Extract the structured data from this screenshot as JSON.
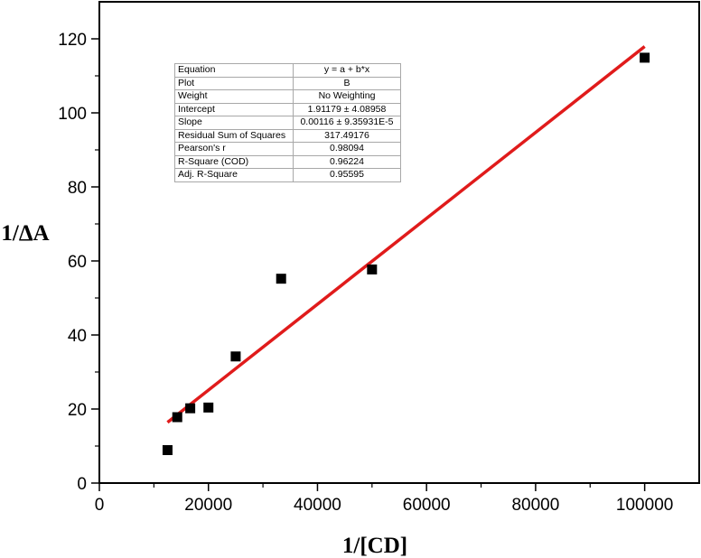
{
  "chart_data": {
    "type": "scatter",
    "xlabel": "1/[CD]",
    "ylabel": "1/ΔA",
    "xlim": [
      0,
      110000
    ],
    "ylim": [
      0,
      130
    ],
    "xticks": [
      0,
      20000,
      40000,
      60000,
      80000,
      100000
    ],
    "yticks": [
      0,
      20,
      40,
      60,
      80,
      100,
      120
    ],
    "points": [
      {
        "x": 12500,
        "y": 8.9
      },
      {
        "x": 14286,
        "y": 17.8
      },
      {
        "x": 16667,
        "y": 20.2
      },
      {
        "x": 20000,
        "y": 20.4
      },
      {
        "x": 25000,
        "y": 34.2
      },
      {
        "x": 33333,
        "y": 55.2
      },
      {
        "x": 50000,
        "y": 57.7
      },
      {
        "x": 100000,
        "y": 114.9
      }
    ],
    "fit_line": {
      "intercept": 1.91179,
      "slope": 0.00116,
      "x_start": 12500,
      "x_end": 100000,
      "color": "#e01b1b"
    },
    "marker_color": "#000000",
    "fit_table": [
      {
        "label": "Equation",
        "value": "y = a + b*x"
      },
      {
        "label": "Plot",
        "value": "B"
      },
      {
        "label": "Weight",
        "value": "No Weighting"
      },
      {
        "label": "Intercept",
        "value": "1.91179 ± 4.08958"
      },
      {
        "label": "Slope",
        "value": "0.00116 ± 9.35931E-5"
      },
      {
        "label": "Residual Sum of Squares",
        "value": "317.49176"
      },
      {
        "label": "Pearson's r",
        "value": "0.98094"
      },
      {
        "label": "R-Square (COD)",
        "value": "0.96224"
      },
      {
        "label": "Adj. R-Square",
        "value": "0.95595"
      }
    ]
  }
}
